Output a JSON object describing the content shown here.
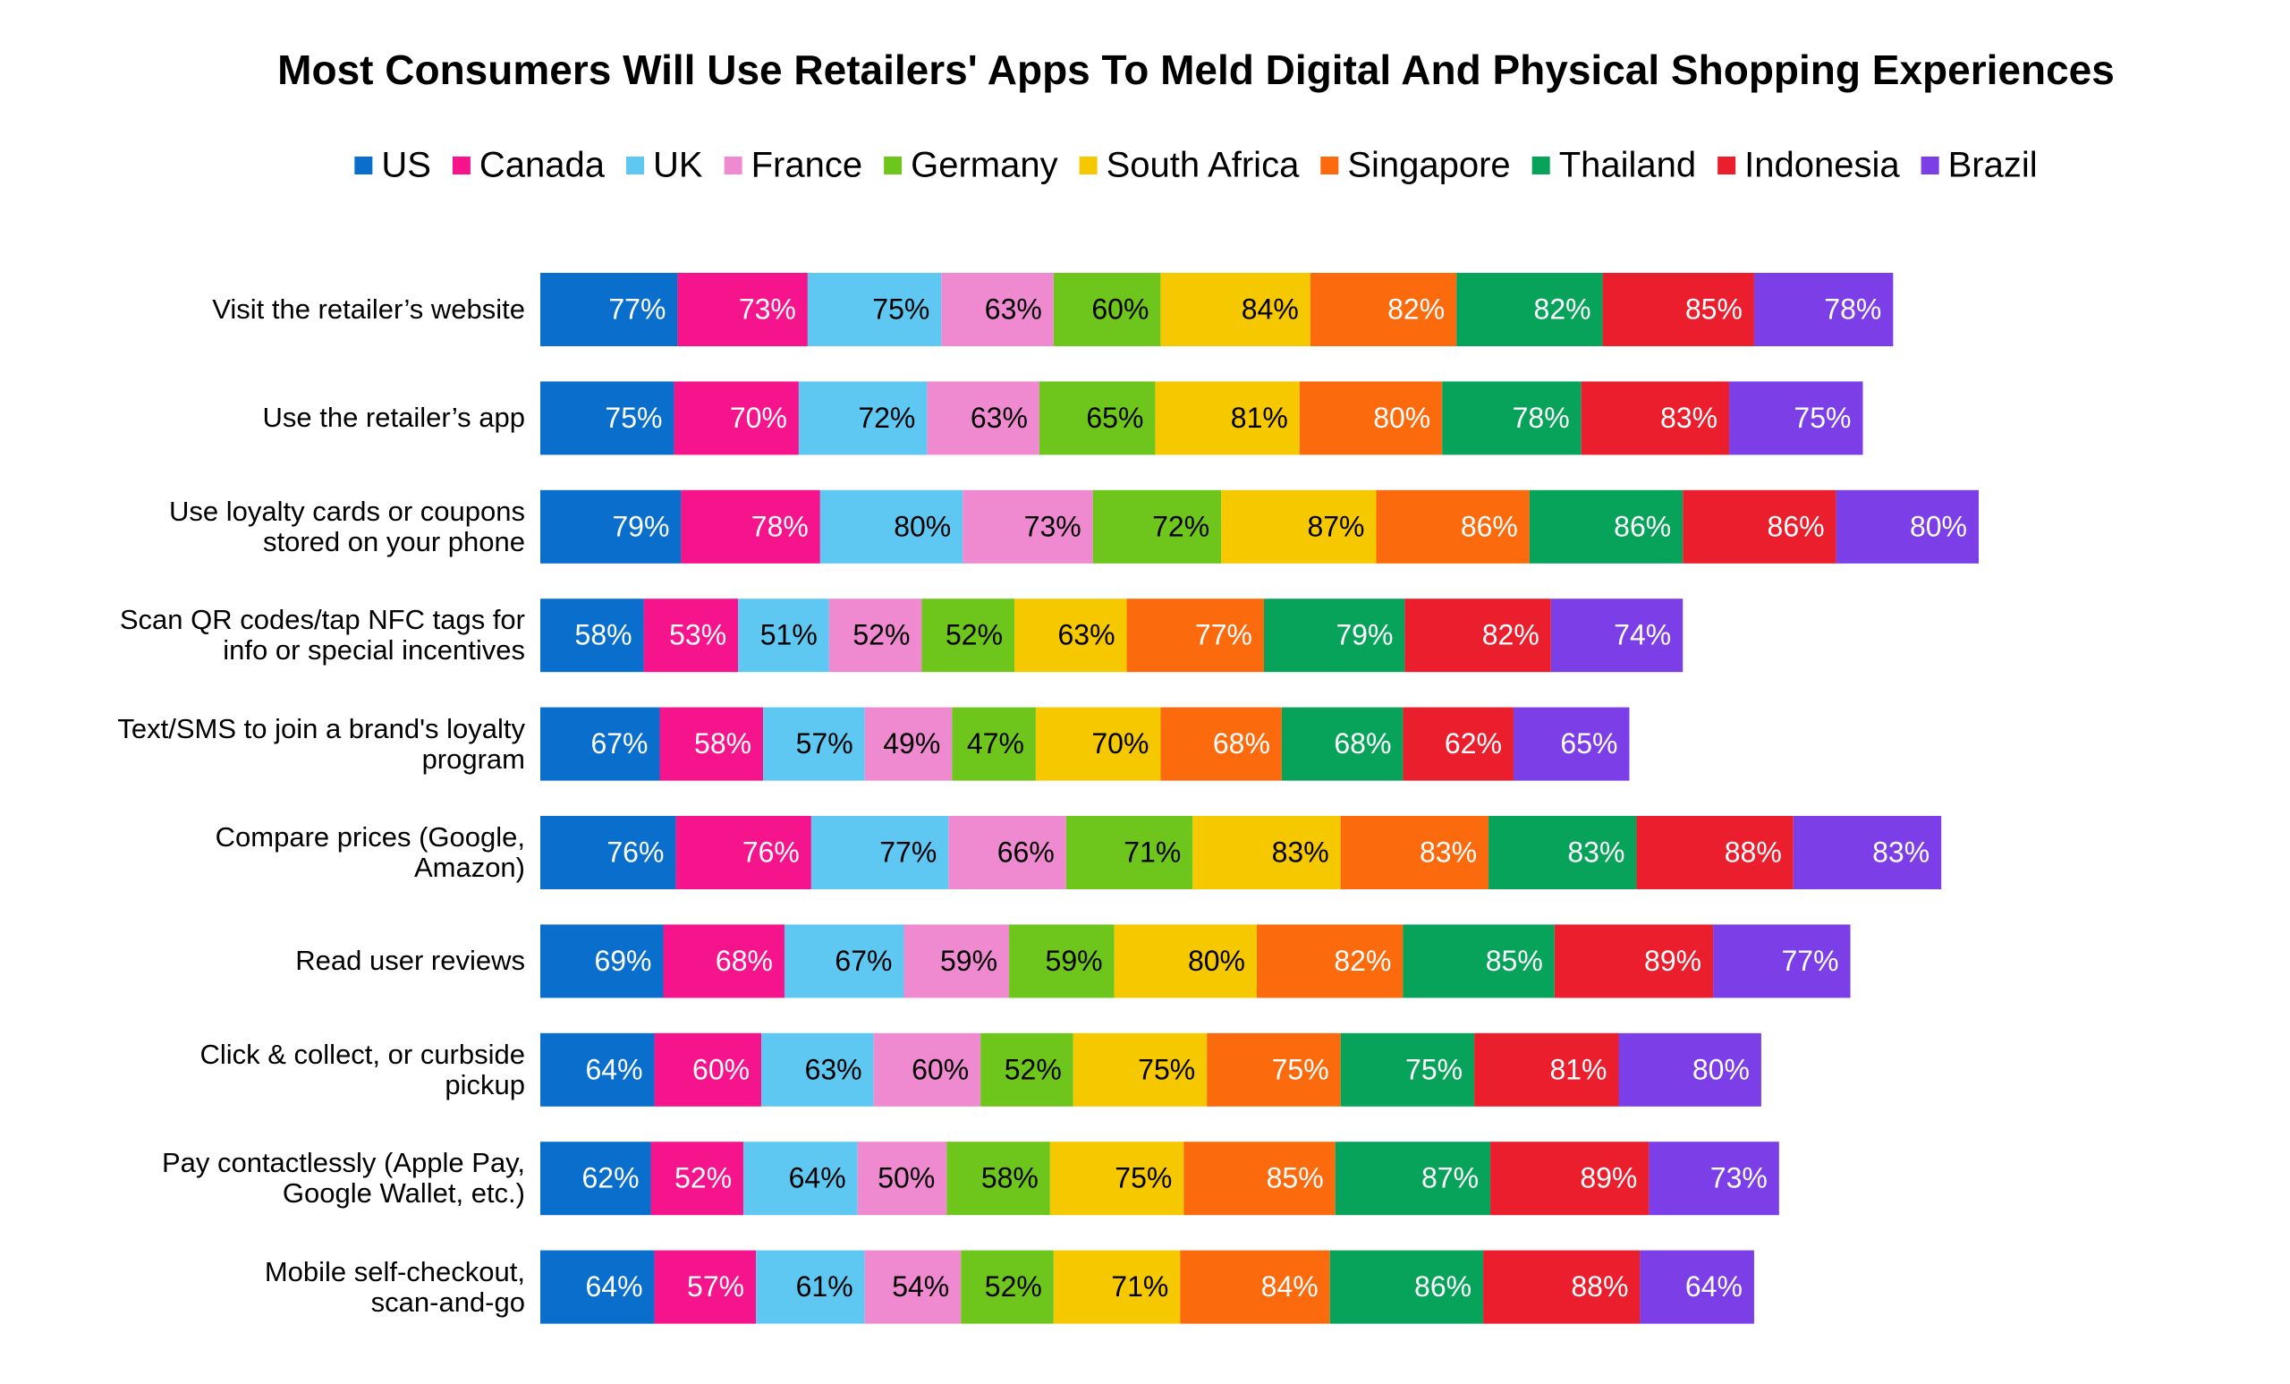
{
  "chart_data": {
    "type": "stacked-bar-horizontal",
    "title": "Most Consumers Will Use Retailers' Apps To Meld Digital And Physical Shopping Experiences",
    "categories": [
      "Visit the retailer’s website",
      "Use the retailer’s app",
      "Use loyalty cards or coupons\nstored on your phone",
      "Scan QR codes/tap NFC tags for\ninfo or special incentives",
      "Text/SMS to join a brand's loyalty\nprogram",
      "Compare prices (Google,\nAmazon)",
      "Read user reviews",
      "Click & collect, or curbside\npickup",
      "Pay contactlessly (Apple Pay,\nGoogle Wallet, etc.)",
      "Mobile self-checkout,\nscan-and-go"
    ],
    "legend": "top",
    "series": [
      {
        "name": "US",
        "color": "#0a6fcc",
        "values": [
          77,
          75,
          79,
          58,
          67,
          76,
          69,
          64,
          62,
          64
        ],
        "value_labels": [
          "77%",
          "75%",
          "79%",
          "58%",
          "67%",
          "76%",
          "69%",
          "64%",
          "62%",
          "64%"
        ]
      },
      {
        "name": "Canada",
        "color": "#f5148c",
        "values": [
          73,
          70,
          78,
          53,
          58,
          76,
          68,
          60,
          52,
          57
        ],
        "value_labels": [
          "73%",
          "70%",
          "78%",
          "53%",
          "58%",
          "76%",
          "68%",
          "60%",
          "52%",
          "57%"
        ]
      },
      {
        "name": "UK",
        "color": "#5ec8f2",
        "values": [
          75,
          72,
          80,
          51,
          57,
          77,
          67,
          63,
          64,
          61
        ],
        "value_labels": [
          "75%",
          "72%",
          "80%",
          "51%",
          "57%",
          "77%",
          "67%",
          "63%",
          "64%",
          "61%"
        ]
      },
      {
        "name": "France",
        "color": "#f08ad0",
        "values": [
          63,
          63,
          73,
          52,
          49,
          66,
          59,
          60,
          50,
          54
        ],
        "value_labels": [
          "63%",
          "63%",
          "73%",
          "52%",
          "49%",
          "66%",
          "59%",
          "60%",
          "50%",
          "54%"
        ]
      },
      {
        "name": "Germany",
        "color": "#6ec61c",
        "values": [
          60,
          65,
          72,
          52,
          47,
          71,
          59,
          52,
          58,
          52
        ],
        "value_labels": [
          "60%",
          "65%",
          "72%",
          "52%",
          "47%",
          "71%",
          "59%",
          "52%",
          "58%",
          "52%"
        ]
      },
      {
        "name": "South Africa",
        "color": "#f6c800",
        "values": [
          84,
          81,
          87,
          63,
          70,
          83,
          80,
          75,
          75,
          71
        ],
        "value_labels": [
          "84%",
          "81%",
          "87%",
          "63%",
          "70%",
          "83%",
          "80%",
          "75%",
          "75%",
          "71%"
        ]
      },
      {
        "name": "Singapore",
        "color": "#fb6a0c",
        "values": [
          82,
          80,
          86,
          77,
          68,
          83,
          82,
          75,
          85,
          84
        ],
        "value_labels": [
          "82%",
          "80%",
          "86%",
          "77%",
          "68%",
          "83%",
          "82%",
          "75%",
          "85%",
          "84%"
        ]
      },
      {
        "name": "Thailand",
        "color": "#07a35a",
        "values": [
          82,
          78,
          86,
          79,
          68,
          83,
          85,
          75,
          87,
          86
        ],
        "value_labels": [
          "82%",
          "78%",
          "86%",
          "79%",
          "68%",
          "83%",
          "85%",
          "75%",
          "87%",
          "86%"
        ]
      },
      {
        "name": "Indonesia",
        "color": "#ea1e2d",
        "values": [
          85,
          83,
          86,
          82,
          62,
          88,
          89,
          81,
          89,
          88
        ],
        "value_labels": [
          "85%",
          "83%",
          "86%",
          "82%",
          "62%",
          "88%",
          "89%",
          "81%",
          "89%",
          "88%"
        ]
      },
      {
        "name": "Brazil",
        "color": "#7c3ee6",
        "values": [
          78,
          75,
          80,
          74,
          65,
          83,
          77,
          80,
          73,
          64
        ],
        "value_labels": [
          "78%",
          "75%",
          "80%",
          "74%",
          "65%",
          "83%",
          "77%",
          "80%",
          "73%",
          "64%"
        ]
      }
    ]
  }
}
